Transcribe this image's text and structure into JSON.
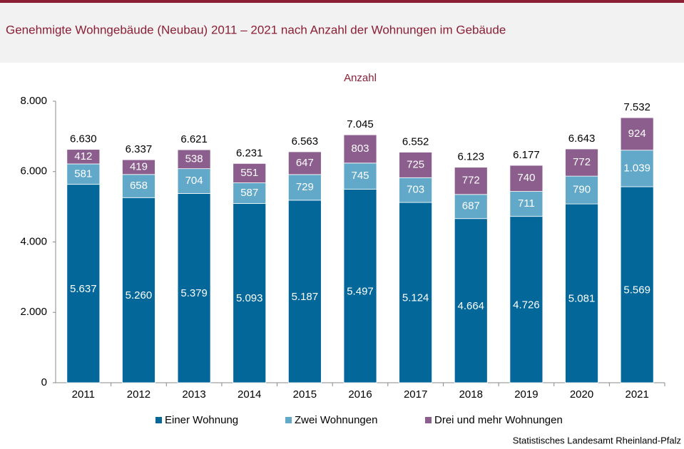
{
  "chart_data": {
    "type": "stacked-bar",
    "title": "Genehmigte Wohngebäude (Neubau) 2011 – 2021 nach Anzahl der Wohnungen im Gebäude",
    "ylabel": "Anzahl",
    "source": "Statistisches Landesamt Rheinland-Pfalz",
    "categories": [
      "2011",
      "2012",
      "2013",
      "2014",
      "2015",
      "2016",
      "2017",
      "2018",
      "2019",
      "2020",
      "2021"
    ],
    "series": [
      {
        "name": "Einer Wohnung",
        "color": "#03679a",
        "values": [
          5637,
          5260,
          5379,
          5093,
          5187,
          5497,
          5124,
          4664,
          4726,
          5081,
          5569
        ],
        "value_labels": [
          "5.637",
          "5.260",
          "5.379",
          "5.093",
          "5.187",
          "5.497",
          "5.124",
          "4.664",
          "4.726",
          "5.081",
          "5.569"
        ]
      },
      {
        "name": "Zwei Wohnungen",
        "color": "#62a9c9",
        "values": [
          581,
          658,
          704,
          587,
          729,
          745,
          703,
          687,
          711,
          790,
          1039
        ],
        "value_labels": [
          "581",
          "658",
          "704",
          "587",
          "729",
          "745",
          "703",
          "687",
          "711",
          "790",
          "1.039"
        ]
      },
      {
        "name": "Drei und mehr Wohnungen",
        "color": "#8b5e8e",
        "values": [
          412,
          419,
          538,
          551,
          647,
          803,
          725,
          772,
          740,
          772,
          924
        ],
        "value_labels": [
          "412",
          "419",
          "538",
          "551",
          "647",
          "803",
          "725",
          "772",
          "740",
          "772",
          "924"
        ]
      }
    ],
    "totals": {
      "values": [
        6630,
        6337,
        6621,
        6231,
        6563,
        7045,
        6552,
        6123,
        6177,
        6643,
        7532
      ],
      "value_labels": [
        "6.630",
        "6.337",
        "6.621",
        "6.231",
        "6.563",
        "7.045",
        "6.552",
        "6.123",
        "6.177",
        "6.643",
        "7.532"
      ]
    },
    "ylim": [
      0,
      8000
    ],
    "yticks": [
      0,
      {
        "value": 2000,
        "label": "2.000"
      },
      {
        "value": 4000,
        "label": "4.000"
      },
      {
        "value": 6000,
        "label": "6.000"
      },
      {
        "value": 8000,
        "label": "8.000"
      }
    ],
    "legend": "bottom"
  }
}
